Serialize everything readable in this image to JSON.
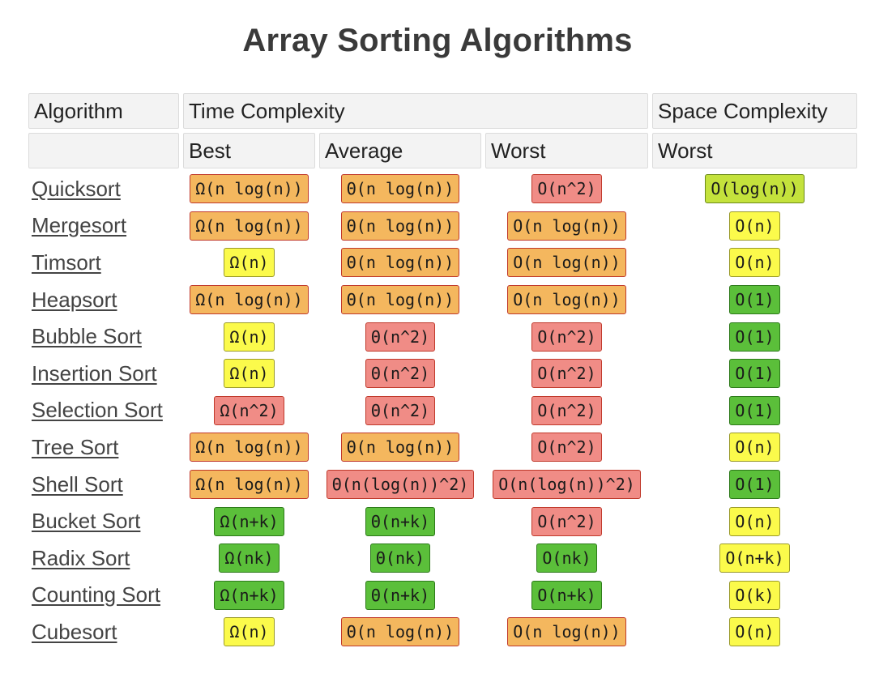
{
  "title": "Array Sorting Algorithms",
  "headers": {
    "algorithm": "Algorithm",
    "time_complexity": "Time Complexity",
    "space_complexity": "Space Complexity",
    "best": "Best",
    "average": "Average",
    "worst": "Worst",
    "space_worst": "Worst"
  },
  "colors": {
    "orange": "#f4b75e",
    "red": "#f08c86",
    "yellow": "#fbfa4b",
    "lime": "#c4e23c",
    "green": "#5bbf3a"
  },
  "rows": [
    {
      "name": "Quicksort",
      "best": {
        "text": "Ω(n log(n))",
        "color": "orange"
      },
      "average": {
        "text": "Θ(n log(n))",
        "color": "orange"
      },
      "worst": {
        "text": "O(n^2)",
        "color": "red"
      },
      "space": {
        "text": "O(log(n))",
        "color": "lime"
      }
    },
    {
      "name": "Mergesort",
      "best": {
        "text": "Ω(n log(n))",
        "color": "orange"
      },
      "average": {
        "text": "Θ(n log(n))",
        "color": "orange"
      },
      "worst": {
        "text": "O(n log(n))",
        "color": "orange"
      },
      "space": {
        "text": "O(n)",
        "color": "yellow"
      }
    },
    {
      "name": "Timsort",
      "best": {
        "text": "Ω(n)",
        "color": "yellow"
      },
      "average": {
        "text": "Θ(n log(n))",
        "color": "orange"
      },
      "worst": {
        "text": "O(n log(n))",
        "color": "orange"
      },
      "space": {
        "text": "O(n)",
        "color": "yellow"
      }
    },
    {
      "name": "Heapsort",
      "best": {
        "text": "Ω(n log(n))",
        "color": "orange"
      },
      "average": {
        "text": "Θ(n log(n))",
        "color": "orange"
      },
      "worst": {
        "text": "O(n log(n))",
        "color": "orange"
      },
      "space": {
        "text": "O(1)",
        "color": "green"
      }
    },
    {
      "name": "Bubble Sort",
      "best": {
        "text": "Ω(n)",
        "color": "yellow"
      },
      "average": {
        "text": "Θ(n^2)",
        "color": "red"
      },
      "worst": {
        "text": "O(n^2)",
        "color": "red"
      },
      "space": {
        "text": "O(1)",
        "color": "green"
      }
    },
    {
      "name": "Insertion Sort",
      "best": {
        "text": "Ω(n)",
        "color": "yellow"
      },
      "average": {
        "text": "Θ(n^2)",
        "color": "red"
      },
      "worst": {
        "text": "O(n^2)",
        "color": "red"
      },
      "space": {
        "text": "O(1)",
        "color": "green"
      }
    },
    {
      "name": "Selection Sort",
      "best": {
        "text": "Ω(n^2)",
        "color": "red"
      },
      "average": {
        "text": "Θ(n^2)",
        "color": "red"
      },
      "worst": {
        "text": "O(n^2)",
        "color": "red"
      },
      "space": {
        "text": "O(1)",
        "color": "green"
      }
    },
    {
      "name": "Tree Sort",
      "best": {
        "text": "Ω(n log(n))",
        "color": "orange"
      },
      "average": {
        "text": "Θ(n log(n))",
        "color": "orange"
      },
      "worst": {
        "text": "O(n^2)",
        "color": "red"
      },
      "space": {
        "text": "O(n)",
        "color": "yellow"
      }
    },
    {
      "name": "Shell Sort",
      "best": {
        "text": "Ω(n log(n))",
        "color": "orange"
      },
      "average": {
        "text": "Θ(n(log(n))^2)",
        "color": "red"
      },
      "worst": {
        "text": "O(n(log(n))^2)",
        "color": "red"
      },
      "space": {
        "text": "O(1)",
        "color": "green"
      }
    },
    {
      "name": "Bucket Sort",
      "best": {
        "text": "Ω(n+k)",
        "color": "green"
      },
      "average": {
        "text": "Θ(n+k)",
        "color": "green"
      },
      "worst": {
        "text": "O(n^2)",
        "color": "red"
      },
      "space": {
        "text": "O(n)",
        "color": "yellow"
      }
    },
    {
      "name": "Radix Sort",
      "best": {
        "text": "Ω(nk)",
        "color": "green"
      },
      "average": {
        "text": "Θ(nk)",
        "color": "green"
      },
      "worst": {
        "text": "O(nk)",
        "color": "green"
      },
      "space": {
        "text": "O(n+k)",
        "color": "yellow"
      }
    },
    {
      "name": "Counting Sort",
      "best": {
        "text": "Ω(n+k)",
        "color": "green"
      },
      "average": {
        "text": "Θ(n+k)",
        "color": "green"
      },
      "worst": {
        "text": "O(n+k)",
        "color": "green"
      },
      "space": {
        "text": "O(k)",
        "color": "yellow"
      }
    },
    {
      "name": "Cubesort",
      "best": {
        "text": "Ω(n)",
        "color": "yellow"
      },
      "average": {
        "text": "Θ(n log(n))",
        "color": "orange"
      },
      "worst": {
        "text": "O(n log(n))",
        "color": "orange"
      },
      "space": {
        "text": "O(n)",
        "color": "yellow"
      }
    }
  ]
}
